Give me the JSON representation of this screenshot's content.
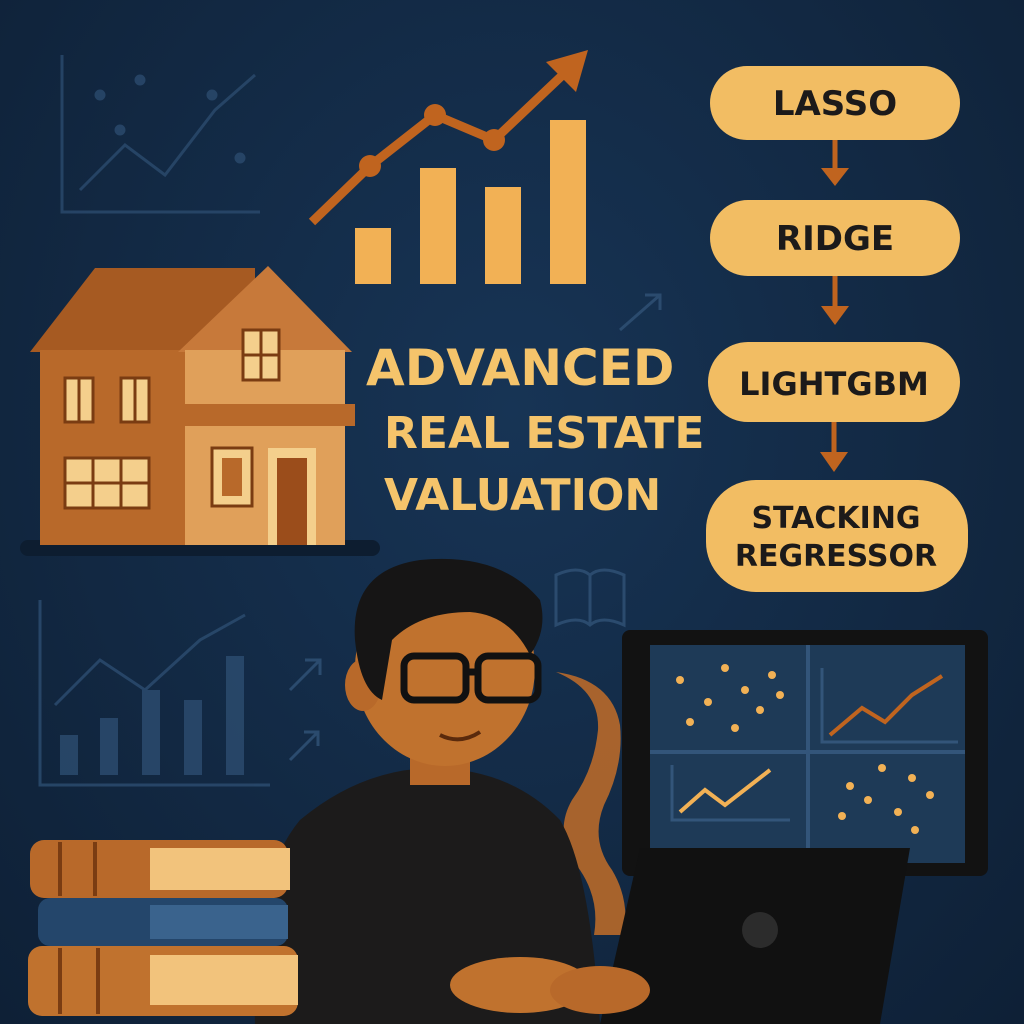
{
  "title": {
    "line1": "ADVANCED",
    "line2": "REAL ESTATE",
    "line3": "VALUATION"
  },
  "pipeline": {
    "steps": [
      {
        "label": "LASSO"
      },
      {
        "label": "RIDGE"
      },
      {
        "label": "LIGHTGBM"
      },
      {
        "label": "STACKING",
        "label2": "REGRESSOR"
      }
    ]
  },
  "colors": {
    "background": "#132a45",
    "accent": "#f2b155",
    "accent_dark": "#c0641f",
    "title": "#f5c46b",
    "pill": "#f2bd63",
    "pill_text": "#1c1a1a"
  },
  "icons": [
    "house-icon",
    "growth-chart-icon",
    "book-stack-icon",
    "laptop-icon",
    "monitor-icon",
    "open-book-icon"
  ]
}
